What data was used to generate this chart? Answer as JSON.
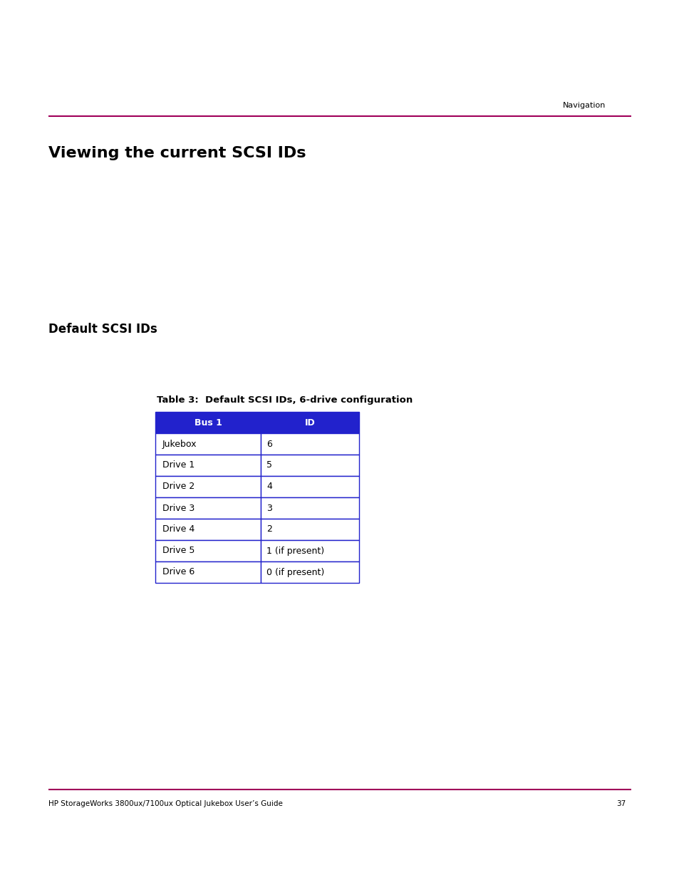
{
  "page_title": "Viewing the current SCSI IDs",
  "section2_title": "Default SCSI IDs",
  "table_caption": "Table 3:  Default SCSI IDs, 6-drive configuration",
  "nav_text": "Navigation",
  "footer_text": "HP StorageWorks 3800ux/7100ux Optical Jukebox User’s Guide",
  "footer_page": "37",
  "header_line_color": "#A0005A",
  "footer_line_color": "#A0005A",
  "header_bg": "#2222CC",
  "header_text_color": "#FFFFFF",
  "table_border_color": "#2222CC",
  "table_row_color": "#FFFFFF",
  "col1_header": "Bus 1",
  "col2_header": "ID",
  "table_data": [
    [
      "Jukebox",
      "6"
    ],
    [
      "Drive 1",
      "5"
    ],
    [
      "Drive 2",
      "4"
    ],
    [
      "Drive 3",
      "3"
    ],
    [
      "Drive 4",
      "2"
    ],
    [
      "Drive 5",
      "1 (if present)"
    ],
    [
      "Drive 6",
      "0 (if present)"
    ]
  ],
  "title_color": "#000000",
  "section2_color": "#000000",
  "body_text_color": "#000000",
  "bg_color": "#FFFFFF",
  "fig_width": 9.54,
  "fig_height": 12.35,
  "dpi": 100
}
